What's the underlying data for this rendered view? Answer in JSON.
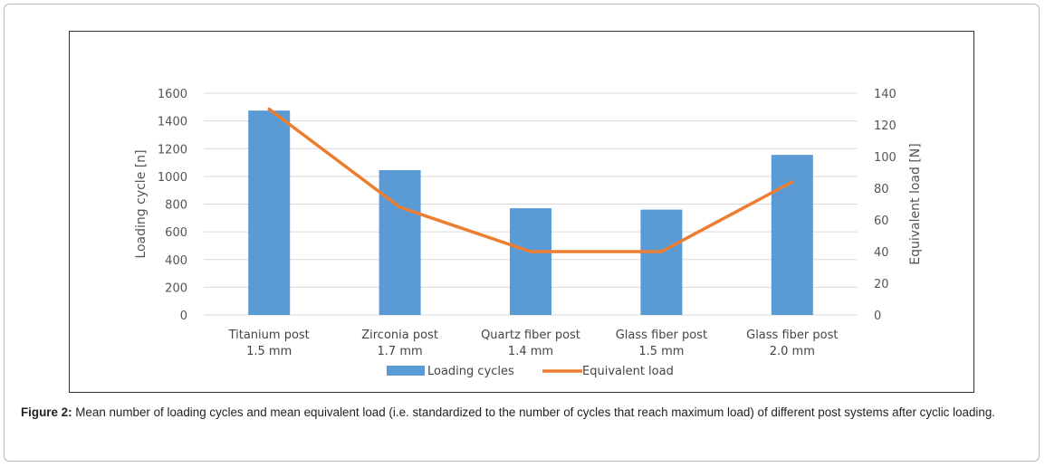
{
  "caption": {
    "label": "Figure 2:",
    "text": " Mean number of loading cycles and mean equivalent load (i.e. standardized to the number of cycles that reach maximum load) of different post systems after cyclic loading."
  },
  "chart_data": {
    "type": "bar",
    "categories": [
      [
        "Titanium post",
        "1.5 mm"
      ],
      [
        "Zirconia post",
        "1.7 mm"
      ],
      [
        "Quartz fiber post",
        "1.4 mm"
      ],
      [
        "Glass fiber post",
        "1.5 mm"
      ],
      [
        "Glass fiber post",
        "2.0 mm"
      ]
    ],
    "series": [
      {
        "name": "Loading cycles",
        "type": "bar",
        "axis": "left",
        "color": "#5b9bd5",
        "values": [
          1475,
          1045,
          770,
          760,
          1155
        ]
      },
      {
        "name": "Equivalent load",
        "type": "line",
        "axis": "right",
        "color": "#ed7d31",
        "values": [
          130,
          68,
          40,
          40,
          84
        ]
      }
    ],
    "ylabel": "Loading cycle [n]",
    "y2label": "Equivalent load [N]",
    "ylim": [
      0,
      1600
    ],
    "y2lim": [
      0,
      140
    ],
    "yticks": [
      0,
      200,
      400,
      600,
      800,
      1000,
      1200,
      1400,
      1600
    ],
    "y2ticks": [
      0,
      20,
      40,
      60,
      80,
      100,
      120,
      140
    ],
    "grid": true,
    "legend_position": "bottom"
  }
}
